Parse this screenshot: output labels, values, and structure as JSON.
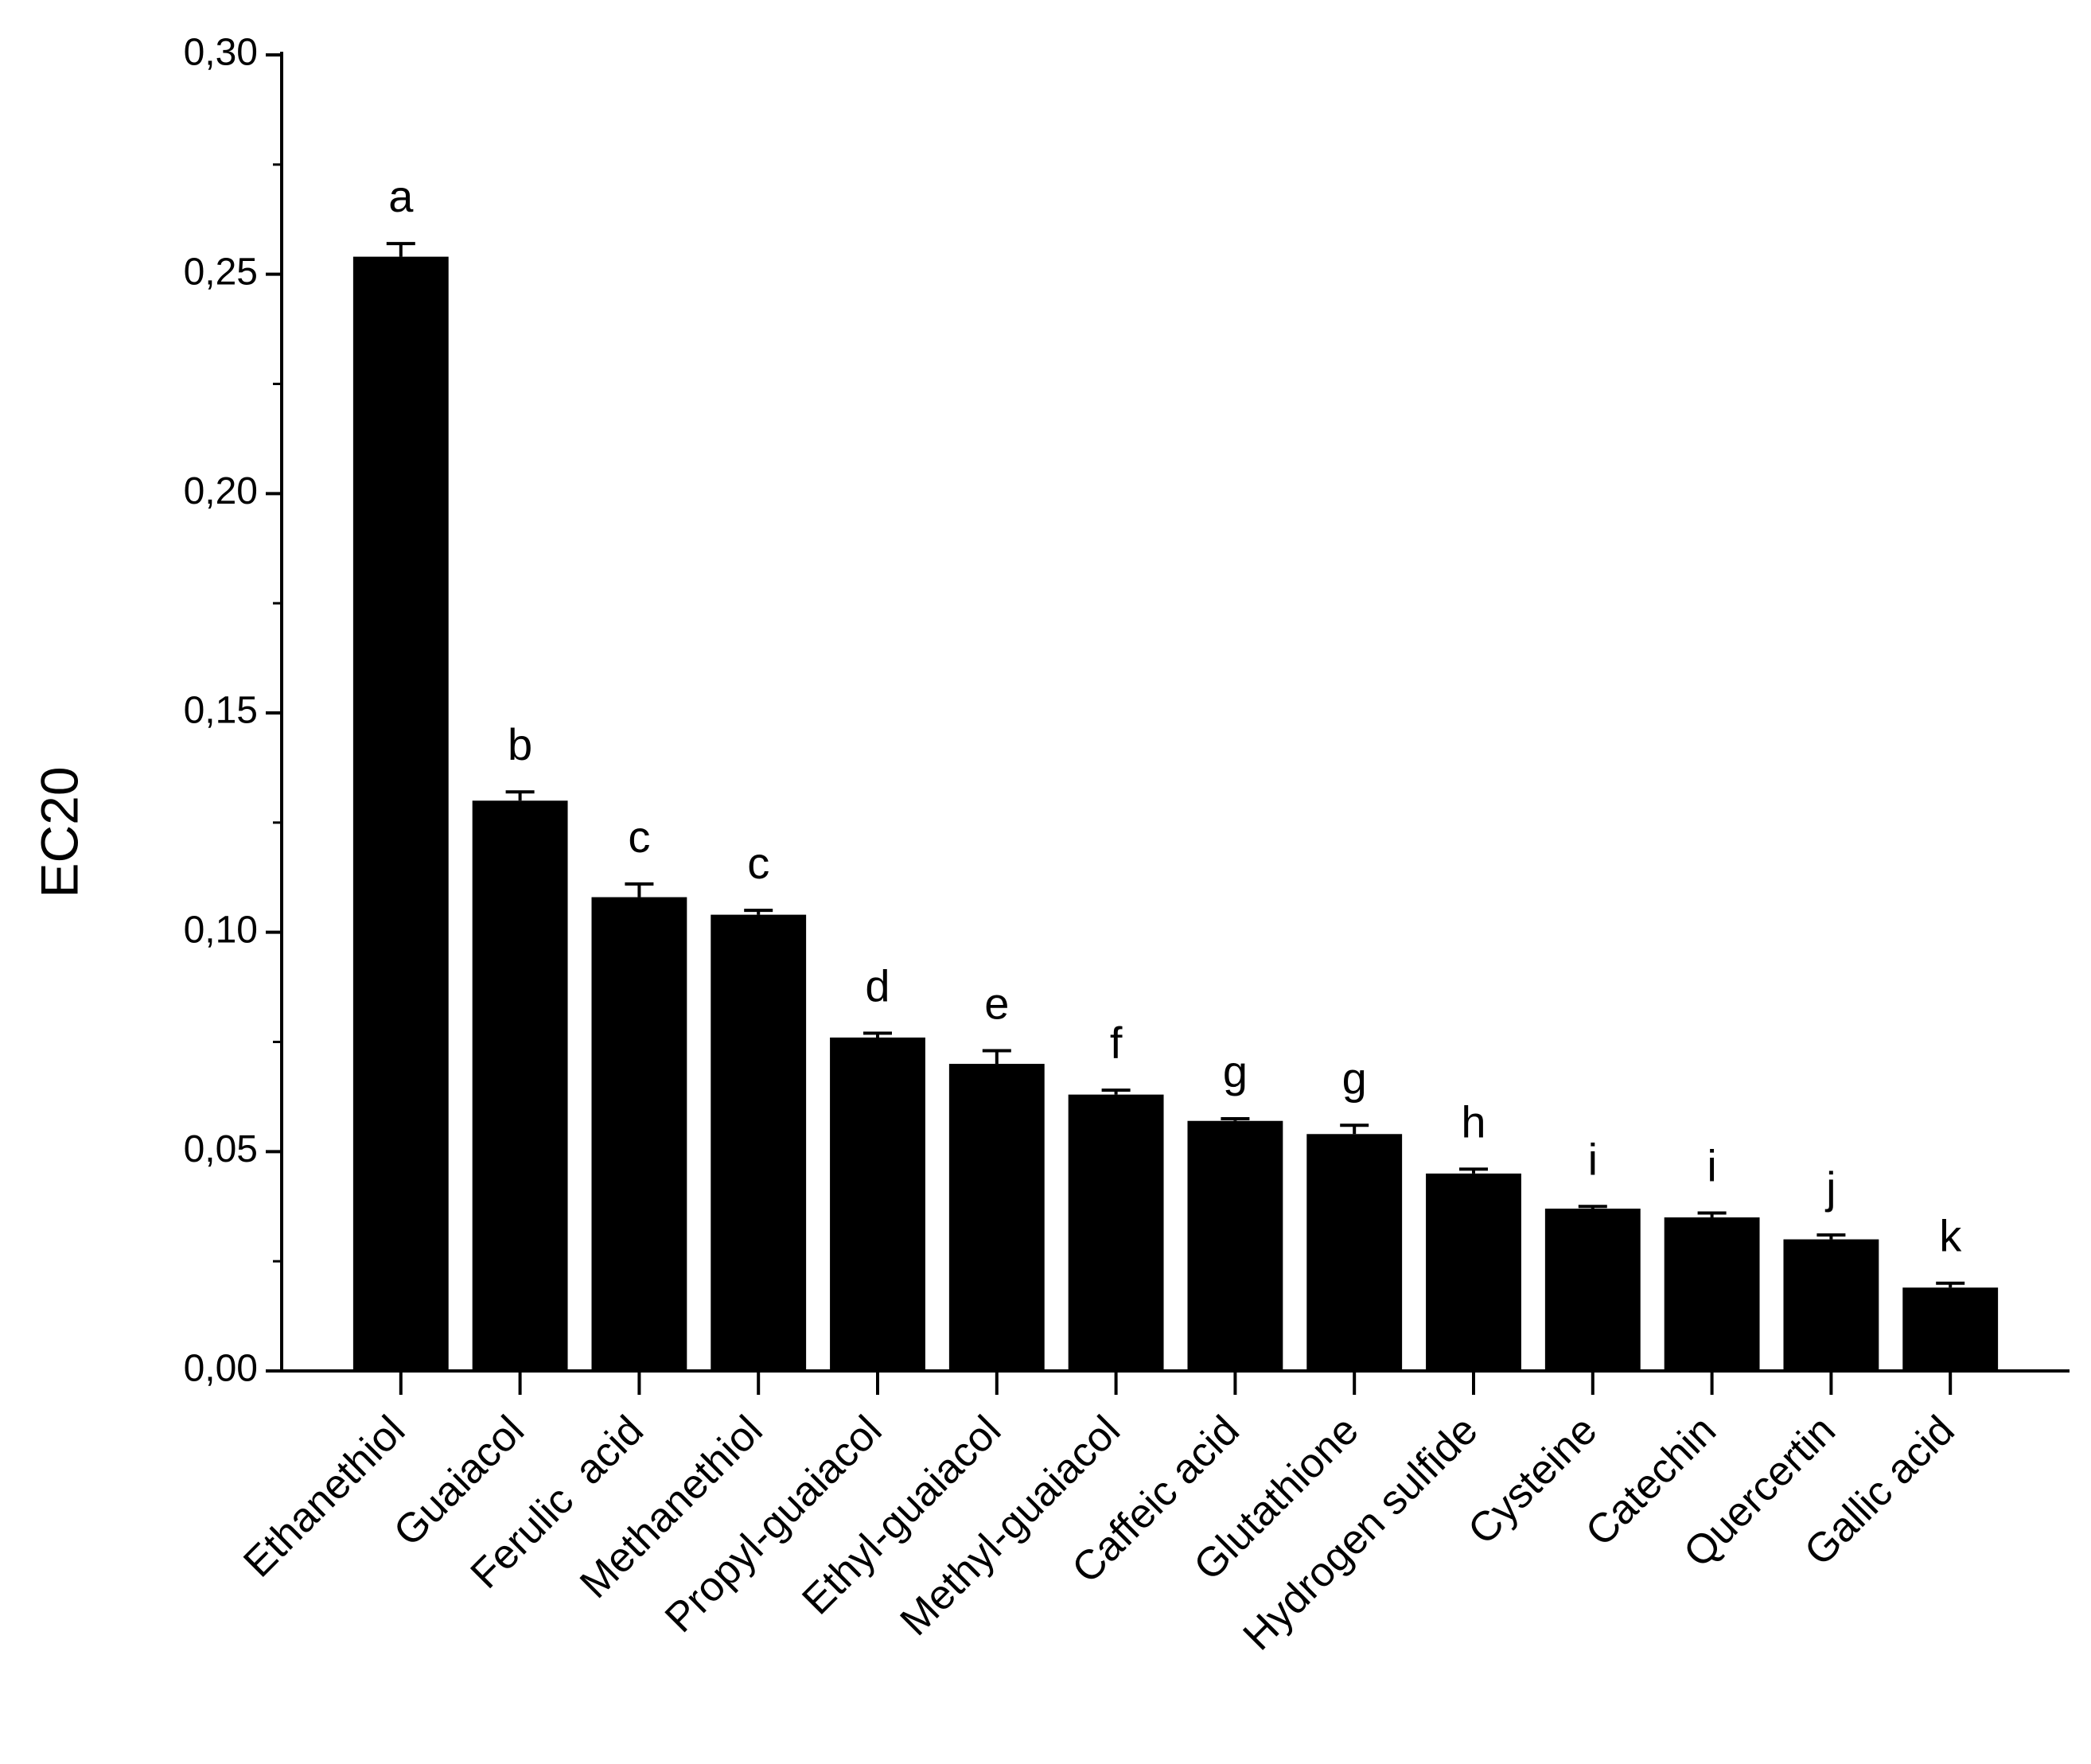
{
  "chart_data": {
    "type": "bar",
    "y_label": "EC20",
    "categories": [
      "Ethanethiol",
      "Guaiacol",
      "Ferulic  acid",
      "Methanethiol",
      "Propyl-guaiacol",
      "Ethyl-guaiacol",
      "Methyl-guaiacol",
      "Caffeic acid",
      "Glutathione",
      "Hydrogen sulfide",
      "Cysteine",
      "Catechin",
      "Quercertin",
      "Gallic acid"
    ],
    "values": [
      0.254,
      0.13,
      0.108,
      0.104,
      0.076,
      0.07,
      0.063,
      0.057,
      0.054,
      0.045,
      0.037,
      0.035,
      0.03,
      0.019
    ],
    "errors": [
      0.003,
      0.002,
      0.003,
      0.001,
      0.001,
      0.003,
      0.001,
      0.0005,
      0.002,
      0.001,
      0.0005,
      0.001,
      0.001,
      0.001
    ],
    "annotations": [
      "a",
      "b",
      "c",
      "c",
      "d",
      "e",
      "f",
      "g",
      "g",
      "h",
      "i",
      "i",
      "j",
      "k"
    ],
    "color": "#000000",
    "ylim": [
      0,
      0.3
    ],
    "yticks": [
      {
        "value": 0,
        "label": "0,00"
      },
      {
        "value": 0.05,
        "label": "0,05"
      },
      {
        "value": 0.1,
        "label": "0,10"
      },
      {
        "value": 0.15,
        "label": "0,15"
      },
      {
        "value": 0.2,
        "label": "0,20"
      },
      {
        "value": 0.25,
        "label": "0,25"
      },
      {
        "value": 0.3,
        "label": "0,30"
      }
    ],
    "minor_yticks": [
      0.025,
      0.075,
      0.125,
      0.175,
      0.225,
      0.275
    ],
    "grid": false
  }
}
